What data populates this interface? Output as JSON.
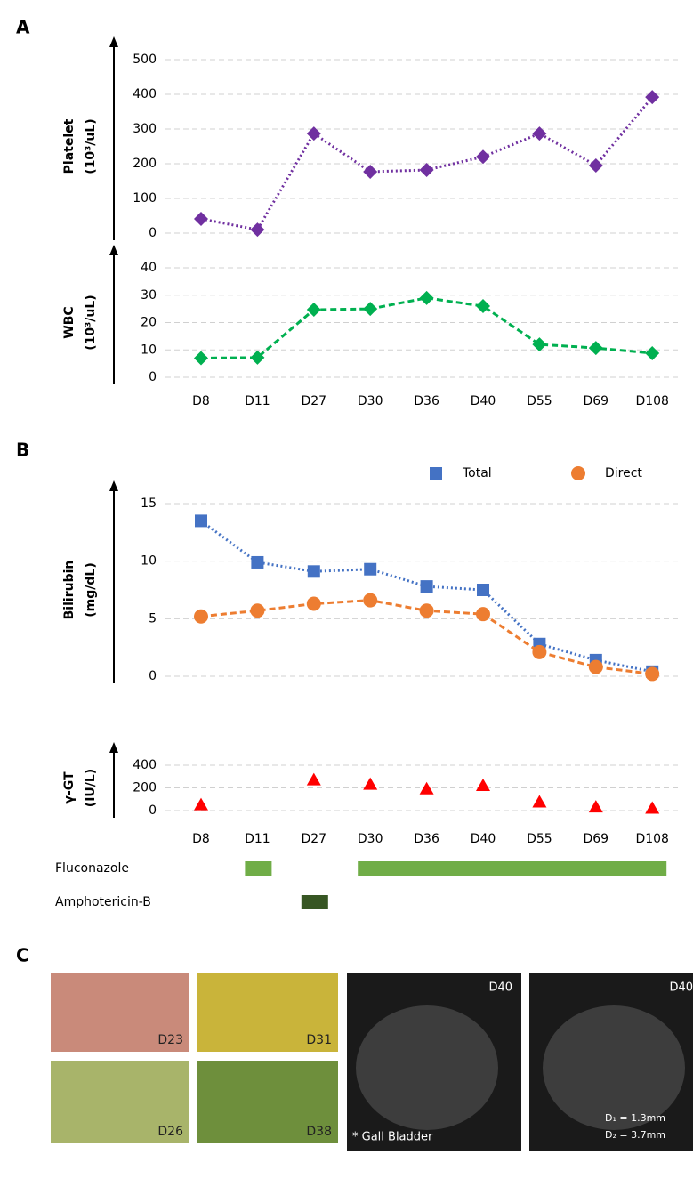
{
  "panels": {
    "a": "A",
    "b": "B",
    "c": "C"
  },
  "chart_data": [
    {
      "type": "line",
      "ylabel": [
        "Platelet",
        "(10³/uL)"
      ],
      "ylim": [
        0,
        500
      ],
      "yticks": [
        0,
        100,
        200,
        300,
        400,
        500
      ],
      "grid": true,
      "series": [
        {
          "name": "Platelet",
          "color": "#7030a0",
          "marker": "diamond",
          "line_style": "dotted",
          "values": [
            41,
            10,
            287,
            177,
            182,
            220,
            287,
            195,
            392
          ]
        }
      ]
    },
    {
      "type": "line",
      "ylabel": [
        "WBC",
        "(10³/uL)"
      ],
      "ylim": [
        0,
        40
      ],
      "yticks": [
        0,
        10,
        20,
        30,
        40
      ],
      "grid": true,
      "categories": [
        "D8",
        "D11",
        "D27",
        "D30",
        "D36",
        "D40",
        "D55",
        "D69",
        "D108"
      ],
      "series": [
        {
          "name": "WBC",
          "color": "#00b050",
          "marker": "diamond",
          "line_style": "dashed",
          "values": [
            7,
            7.2,
            24.7,
            25,
            29,
            26,
            12,
            10.7,
            8.8
          ]
        }
      ]
    },
    {
      "type": "line",
      "ylabel": [
        "Bilirubin",
        "(mg/dL)"
      ],
      "ylim": [
        0,
        15
      ],
      "yticks": [
        0,
        5,
        10,
        15
      ],
      "grid": true,
      "legend": "top-right",
      "series": [
        {
          "name": "Total",
          "color": "#4472c4",
          "marker": "square",
          "line_style": "dotted",
          "values": [
            13.5,
            9.9,
            9.1,
            9.3,
            7.8,
            7.5,
            2.8,
            1.4,
            0.4
          ]
        },
        {
          "name": "Direct",
          "color": "#ed7d31",
          "marker": "circle",
          "line_style": "dashed",
          "values": [
            5.2,
            5.7,
            6.3,
            6.6,
            5.7,
            5.4,
            2.1,
            0.8,
            0.2
          ]
        }
      ]
    },
    {
      "type": "scatter",
      "ylabel": [
        "γ-GT",
        "(IU/L)"
      ],
      "ylim": [
        0,
        400
      ],
      "yticks": [
        0,
        200,
        400
      ],
      "grid": true,
      "categories": [
        "D8",
        "D11",
        "D27",
        "D30",
        "D36",
        "D40",
        "D55",
        "D69",
        "D108"
      ],
      "series": [
        {
          "name": "γ-GT",
          "color": "#ff0000",
          "marker": "triangle",
          "values": [
            50,
            null,
            270,
            230,
            190,
            220,
            75,
            30,
            20
          ]
        }
      ]
    }
  ],
  "treatments": [
    {
      "name": "Fluconazole",
      "color": "#70ad47",
      "periods": [
        [
          "D11",
          "D11"
        ],
        [
          "D30",
          "D108"
        ]
      ]
    },
    {
      "name": "Amphotericin-B",
      "color": "#375623",
      "periods": [
        [
          "D27",
          "D27"
        ]
      ]
    }
  ],
  "images": [
    {
      "label": "D23"
    },
    {
      "label": "D31"
    },
    {
      "label": "D26"
    },
    {
      "label": "D38"
    },
    {
      "label": "D40",
      "notes": [
        "* Gall Bladder"
      ]
    },
    {
      "label": "D40",
      "notes": [
        "D₁ = 1.3mm",
        "D₂ = 3.7mm"
      ]
    }
  ]
}
